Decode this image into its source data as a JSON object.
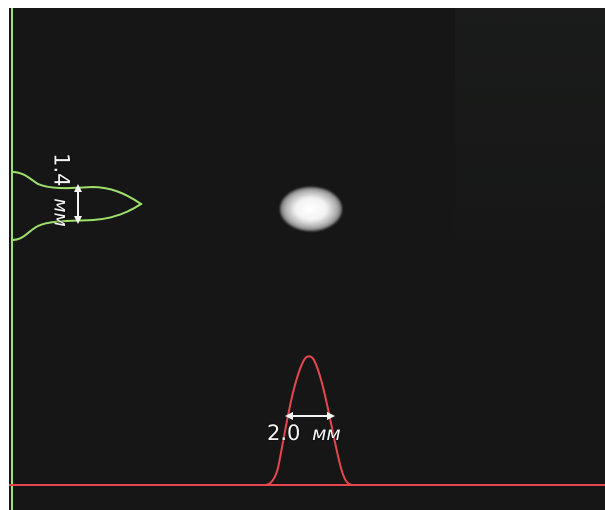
{
  "measurements": {
    "vertical": {
      "value": "1.4",
      "unit": "мм"
    },
    "horizontal": {
      "value": "2.0",
      "unit": "мм"
    }
  },
  "colors": {
    "background": "#161616",
    "vertical_profile": "#9ee06c",
    "horizontal_profile": "#e6474e",
    "spot": "#f4f4f4",
    "labels": "#f4f4f4"
  },
  "icons": {
    "vertical_width_arrow": "vertical-width-arrow-icon",
    "horizontal_width_arrow": "horizontal-width-arrow-icon"
  }
}
